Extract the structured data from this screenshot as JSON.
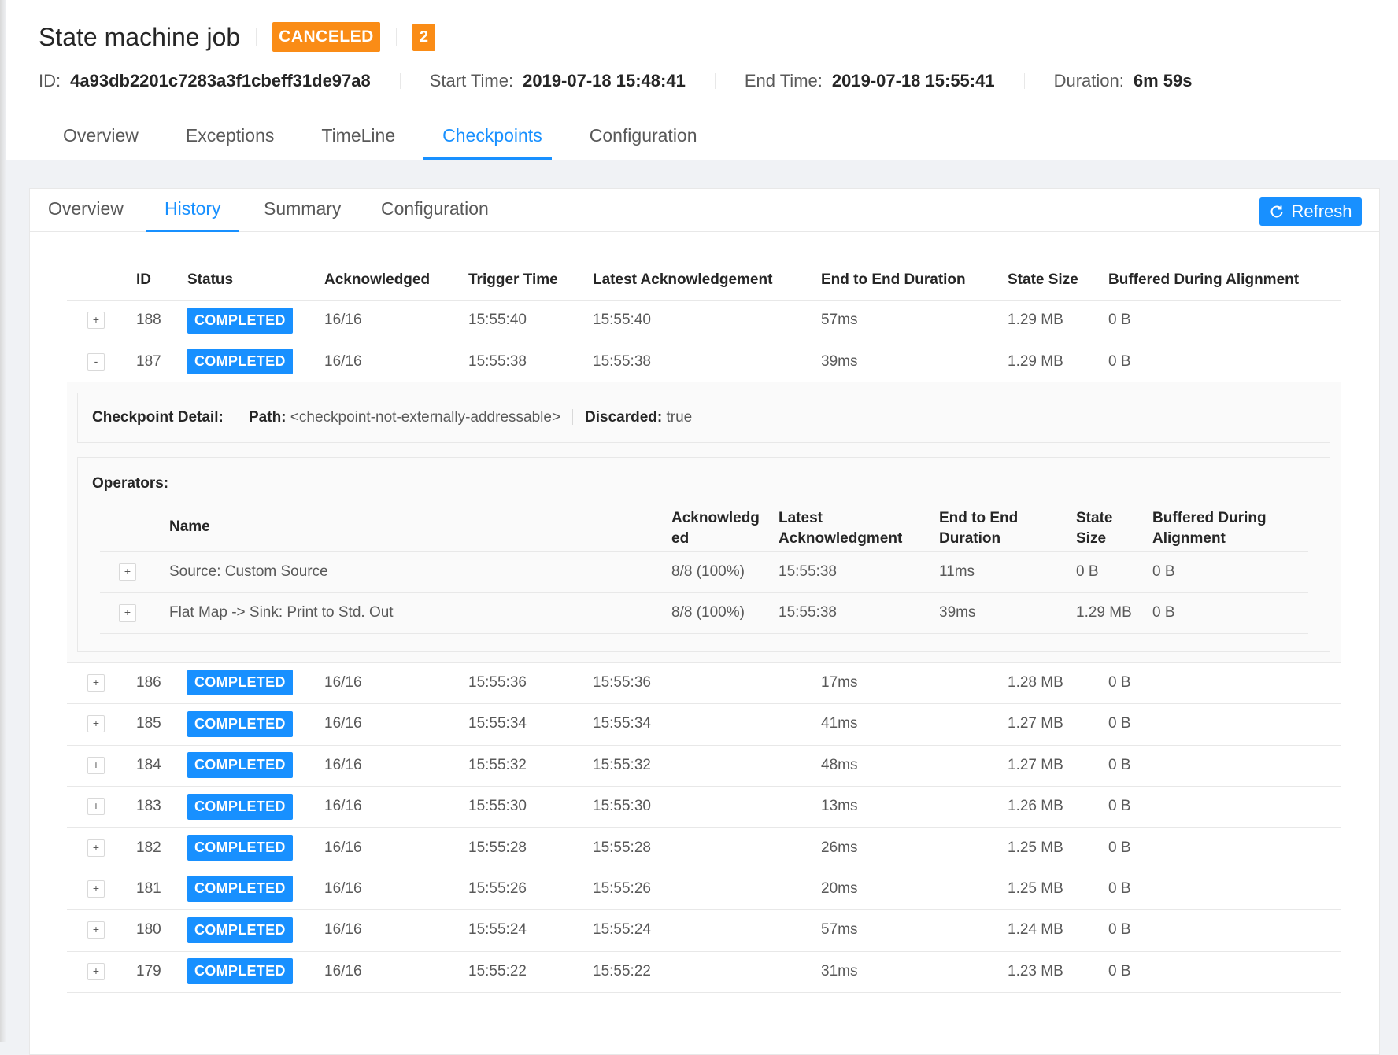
{
  "header": {
    "job_name": "State machine job",
    "status": "CANCELED",
    "count": "2",
    "id_label": "ID:",
    "id_value": "4a93db2201c7283a3f1cbeff31de97a8",
    "start_label": "Start Time:",
    "start_value": "2019-07-18 15:48:41",
    "end_label": "End Time:",
    "end_value": "2019-07-18 15:55:41",
    "duration_label": "Duration:",
    "duration_value": "6m 59s",
    "tabs": [
      "Overview",
      "Exceptions",
      "TimeLine",
      "Checkpoints",
      "Configuration"
    ],
    "active_tab": "Checkpoints"
  },
  "subtabs": [
    "Overview",
    "History",
    "Summary",
    "Configuration"
  ],
  "active_subtab": "History",
  "refresh_label": "Refresh",
  "table": {
    "headers": [
      "ID",
      "Status",
      "Acknowledged",
      "Trigger Time",
      "Latest Acknowledgement",
      "End to End Duration",
      "State Size",
      "Buffered During Alignment"
    ],
    "rows": [
      {
        "toggle": "+",
        "id": "188",
        "status": "COMPLETED",
        "ack": "16/16",
        "trigger": "15:55:40",
        "latest": "15:55:40",
        "duration": "57ms",
        "size": "1.29 MB",
        "buffered": "0 B"
      },
      {
        "toggle": "-",
        "id": "187",
        "status": "COMPLETED",
        "ack": "16/16",
        "trigger": "15:55:38",
        "latest": "15:55:38",
        "duration": "39ms",
        "size": "1.29 MB",
        "buffered": "0 B"
      },
      {
        "toggle": "+",
        "id": "186",
        "status": "COMPLETED",
        "ack": "16/16",
        "trigger": "15:55:36",
        "latest": "15:55:36",
        "duration": "17ms",
        "size": "1.28 MB",
        "buffered": "0 B"
      },
      {
        "toggle": "+",
        "id": "185",
        "status": "COMPLETED",
        "ack": "16/16",
        "trigger": "15:55:34",
        "latest": "15:55:34",
        "duration": "41ms",
        "size": "1.27 MB",
        "buffered": "0 B"
      },
      {
        "toggle": "+",
        "id": "184",
        "status": "COMPLETED",
        "ack": "16/16",
        "trigger": "15:55:32",
        "latest": "15:55:32",
        "duration": "48ms",
        "size": "1.27 MB",
        "buffered": "0 B"
      },
      {
        "toggle": "+",
        "id": "183",
        "status": "COMPLETED",
        "ack": "16/16",
        "trigger": "15:55:30",
        "latest": "15:55:30",
        "duration": "13ms",
        "size": "1.26 MB",
        "buffered": "0 B"
      },
      {
        "toggle": "+",
        "id": "182",
        "status": "COMPLETED",
        "ack": "16/16",
        "trigger": "15:55:28",
        "latest": "15:55:28",
        "duration": "26ms",
        "size": "1.25 MB",
        "buffered": "0 B"
      },
      {
        "toggle": "+",
        "id": "181",
        "status": "COMPLETED",
        "ack": "16/16",
        "trigger": "15:55:26",
        "latest": "15:55:26",
        "duration": "20ms",
        "size": "1.25 MB",
        "buffered": "0 B"
      },
      {
        "toggle": "+",
        "id": "180",
        "status": "COMPLETED",
        "ack": "16/16",
        "trigger": "15:55:24",
        "latest": "15:55:24",
        "duration": "57ms",
        "size": "1.24 MB",
        "buffered": "0 B"
      },
      {
        "toggle": "+",
        "id": "179",
        "status": "COMPLETED",
        "ack": "16/16",
        "trigger": "15:55:22",
        "latest": "15:55:22",
        "duration": "31ms",
        "size": "1.23 MB",
        "buffered": "0 B"
      }
    ]
  },
  "detail": {
    "label": "Checkpoint Detail:",
    "path_label": "Path:",
    "path_value": "<checkpoint-not-externally-addressable>",
    "discarded_label": "Discarded:",
    "discarded_value": "true",
    "operators_label": "Operators:",
    "op_headers": {
      "name": "Name",
      "ack_1": "Acknowledg",
      "ack_2": "ed",
      "latest_1": "Latest",
      "latest_2": "Acknowledgment",
      "dur_1": "End to End",
      "dur_2": "Duration",
      "size_1": "State",
      "size_2": "Size",
      "buf_1": "Buffered During",
      "buf_2": "Alignment"
    },
    "operators": [
      {
        "toggle": "+",
        "name": "Source: Custom Source",
        "ack": "8/8 (100%)",
        "latest": "15:55:38",
        "duration": "11ms",
        "size": "0 B",
        "buffered": "0 B"
      },
      {
        "toggle": "+",
        "name": "Flat Map -> Sink: Print to Std. Out",
        "ack": "8/8 (100%)",
        "latest": "15:55:38",
        "duration": "39ms",
        "size": "1.29 MB",
        "buffered": "0 B"
      }
    ]
  },
  "colors": {
    "accent": "#1890ff",
    "canceled": "#fa8c16"
  }
}
